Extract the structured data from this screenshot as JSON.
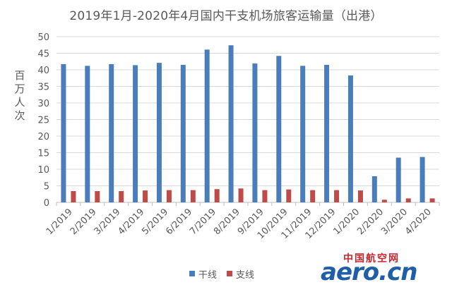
{
  "chart_data": {
    "type": "bar",
    "title": "2019年1月-2020年4月国内干支机场旅客运输量（出港）",
    "ylabel": "百万人次",
    "xlabel": "",
    "ylim": [
      0,
      50
    ],
    "yticks": [
      0,
      5,
      10,
      15,
      20,
      25,
      30,
      35,
      40,
      45,
      50
    ],
    "grid": true,
    "legend_position": "bottom",
    "categories": [
      "1/2019",
      "2/2019",
      "3/2019",
      "4/2019",
      "5/2019",
      "6/2019",
      "7/2019",
      "8/2019",
      "9/2019",
      "10/2019",
      "11/2019",
      "12/2019",
      "1/2020",
      "2/2020",
      "3/2020",
      "4/2020"
    ],
    "series": [
      {
        "name": "干线",
        "color": "#4a7ebb",
        "values": [
          41.7,
          41.2,
          41.7,
          41.4,
          42.1,
          41.5,
          46.1,
          47.4,
          41.9,
          44.2,
          41.2,
          41.5,
          38.3,
          7.9,
          13.5,
          13.7
        ]
      },
      {
        "name": "支线",
        "color": "#be4b48",
        "values": [
          3.4,
          3.4,
          3.4,
          3.6,
          3.7,
          3.7,
          4.0,
          4.2,
          3.7,
          3.9,
          3.7,
          3.7,
          3.6,
          0.8,
          1.2,
          1.2
        ]
      }
    ]
  },
  "watermark": {
    "cn": "中国航空网",
    "en": "aero.cn"
  }
}
